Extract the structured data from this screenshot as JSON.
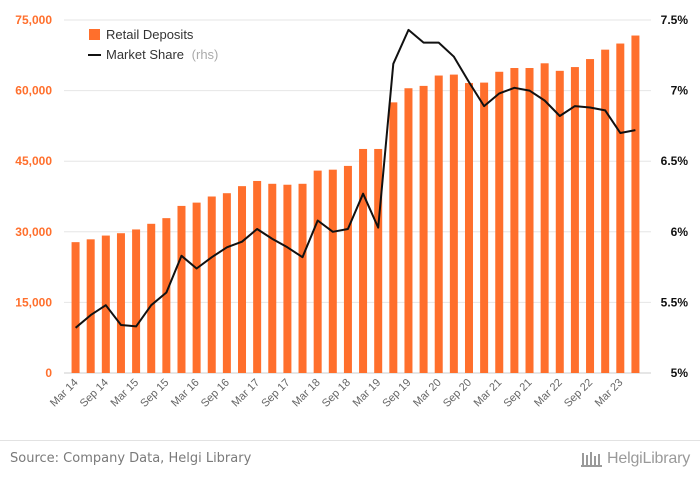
{
  "chart_data": {
    "type": "bar+line",
    "categories": [
      "Mar 14",
      "Jun 14",
      "Sep 14",
      "Dec 14",
      "Mar 15",
      "Jun 15",
      "Sep 15",
      "Dec 15",
      "Mar 16",
      "Jun 16",
      "Sep 16",
      "Dec 16",
      "Mar 17",
      "Jun 17",
      "Sep 17",
      "Dec 17",
      "Mar 18",
      "Jun 18",
      "Sep 18",
      "Dec 18",
      "Mar 19",
      "Jun 19",
      "Sep 19",
      "Dec 19",
      "Mar 20",
      "Jun 20",
      "Sep 20",
      "Dec 20",
      "Mar 21",
      "Jun 21",
      "Sep 21",
      "Dec 21",
      "Mar 22",
      "Jun 22",
      "Sep 22",
      "Dec 22",
      "Mar 23",
      "Jun 23"
    ],
    "tick_labels": [
      "Mar 14",
      "",
      "Sep 14",
      "",
      "Mar 15",
      "",
      "Sep 15",
      "",
      "Mar 16",
      "",
      "Sep 16",
      "",
      "Mar 17",
      "",
      "Sep 17",
      "",
      "Mar 18",
      "",
      "Sep 18",
      "",
      "Mar 19",
      "",
      "Sep 19",
      "",
      "Mar 20",
      "",
      "Sep 20",
      "",
      "Mar 21",
      "",
      "Sep 21",
      "",
      "Mar 22",
      "",
      "Sep 22",
      "",
      "Mar 23",
      ""
    ],
    "series": [
      {
        "name": "Retail Deposits",
        "axis": "left",
        "kind": "bar",
        "color": "#ff6f2c",
        "values": [
          27800,
          28400,
          29200,
          29700,
          30500,
          31700,
          32900,
          35500,
          36200,
          37500,
          38200,
          39700,
          40800,
          40200,
          40000,
          40200,
          43000,
          43200,
          44000,
          47600,
          47600,
          57500,
          60500,
          61000,
          63200,
          63400,
          61600,
          61700,
          64000,
          64800,
          64800,
          65800,
          64200,
          65000,
          66700,
          68700,
          70000,
          71700
        ]
      },
      {
        "name": "Market Share",
        "name_suffix": "(rhs)",
        "axis": "right",
        "kind": "line",
        "color": "#111111",
        "values": [
          5.32,
          5.41,
          5.48,
          5.34,
          5.33,
          5.48,
          5.57,
          5.83,
          5.74,
          5.82,
          5.89,
          5.93,
          6.02,
          5.95,
          5.89,
          5.82,
          6.08,
          6.0,
          6.02,
          6.27,
          6.03,
          7.19,
          7.43,
          7.34,
          7.34,
          7.24,
          7.06,
          6.89,
          6.98,
          7.02,
          7.0,
          6.93,
          6.82,
          6.89,
          6.88,
          6.86,
          6.7,
          6.72
        ]
      }
    ],
    "left_axis": {
      "ylim": [
        0,
        75000
      ],
      "ticks": [
        "0",
        "15,000",
        "30,000",
        "45,000",
        "60,000",
        "75,000"
      ],
      "tick_values": [
        0,
        15000,
        30000,
        45000,
        60000,
        75000
      ],
      "color": "#ff6f2c"
    },
    "right_axis": {
      "ylim": [
        5,
        7.5
      ],
      "ticks": [
        "5%",
        "5.5%",
        "6%",
        "6.5%",
        "7%",
        "7.5%"
      ],
      "tick_values": [
        5,
        5.5,
        6,
        6.5,
        7,
        7.5
      ],
      "color": "#111111"
    },
    "grid": true,
    "legend": "top-left"
  },
  "footer": {
    "source": "Source: Company Data, Helgi Library",
    "logo_text": "HelgiLibrary"
  }
}
